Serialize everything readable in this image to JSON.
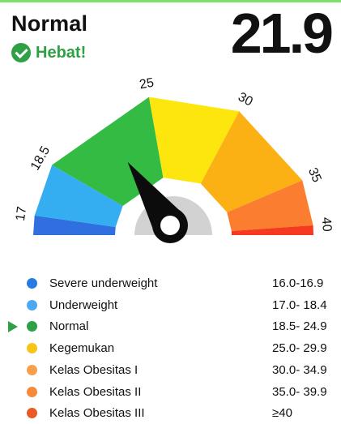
{
  "header": {
    "status": "Normal",
    "verdict": "Hebat!",
    "bmi_value": "21.9"
  },
  "gauge": {
    "value": 21.9,
    "ticks": [
      "17",
      "18.5",
      "25",
      "30",
      "35",
      "40"
    ]
  },
  "colors": {
    "severe_underweight": "#2f6fe0",
    "underweight": "#34aef0",
    "normal": "#33bb43",
    "kegemukan": "#fde60d",
    "obesitas_1": "#fbb114",
    "obesitas_2": "#fb7e30",
    "obesitas_3": "#f63a22",
    "hub": "#d2d2d2",
    "accent": "#2fa043"
  },
  "legend": [
    {
      "label": "Severe underweight",
      "range": "16.0-16.9",
      "color": "#2a7ae4",
      "selected": false
    },
    {
      "label": "Underweight",
      "range": "17.0- 18.4",
      "color": "#4aa9f0",
      "selected": false
    },
    {
      "label": "Normal",
      "range": "18.5- 24.9",
      "color": "#2fa043",
      "selected": true
    },
    {
      "label": "Kegemukan",
      "range": "25.0- 29.9",
      "color": "#f7c51a",
      "selected": false
    },
    {
      "label": "Kelas Obesitas I",
      "range": "30.0- 34.9",
      "color": "#f5a04a",
      "selected": false
    },
    {
      "label": "Kelas Obesitas II",
      "range": "35.0- 39.9",
      "color": "#f58a3a",
      "selected": false
    },
    {
      "label": "Kelas Obesitas III",
      "range": "≥40",
      "color": "#e85a28",
      "selected": false
    }
  ]
}
